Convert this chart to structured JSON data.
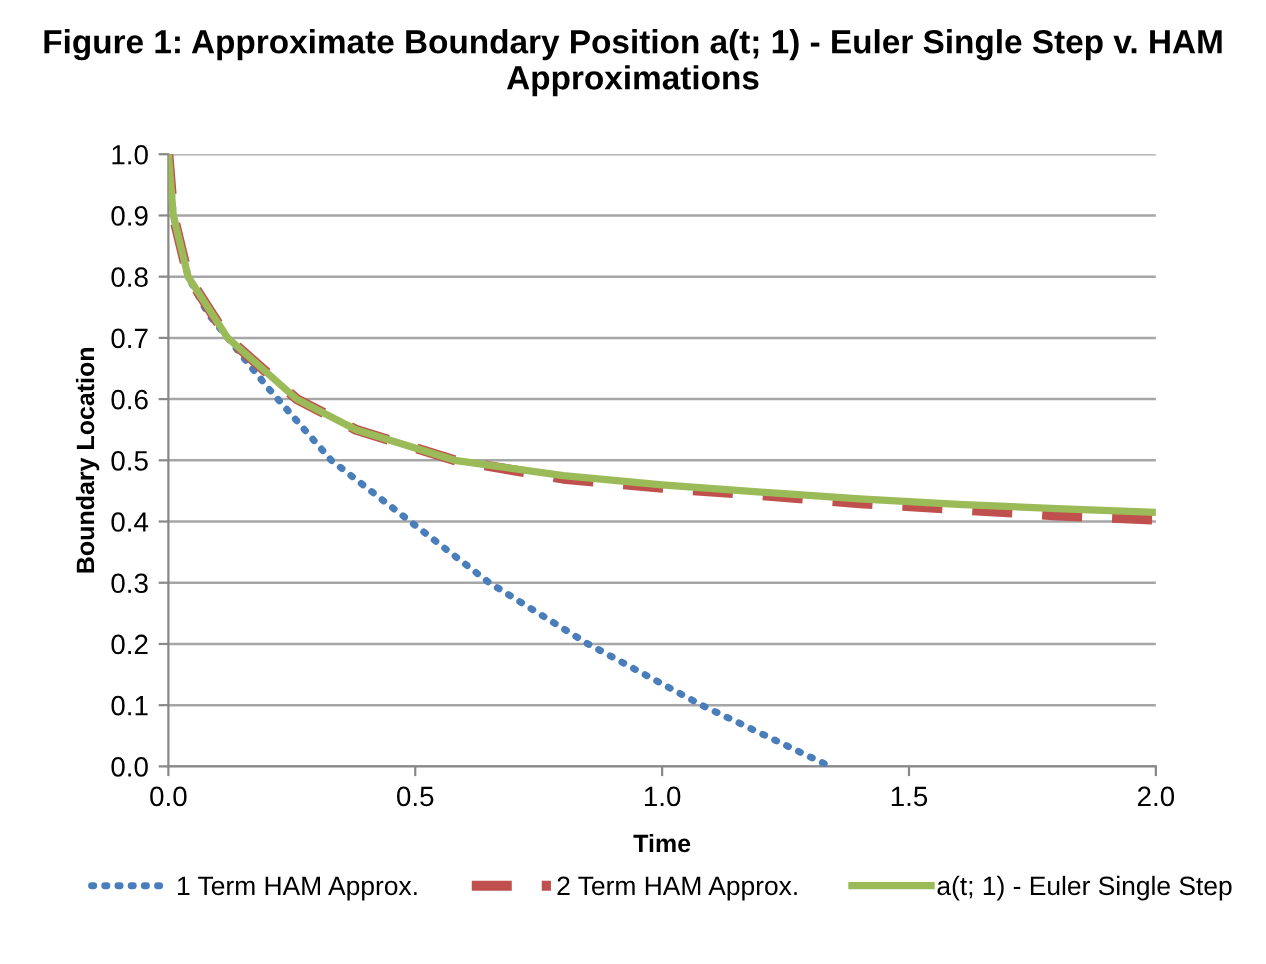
{
  "chart_data": {
    "type": "line",
    "title": "Figure 1: Approximate Boundary Position a(t; 1) - Euler Single Step v. HAM Approximations",
    "xlabel": "Time",
    "ylabel": "Boundary Location",
    "xlim": [
      0,
      2
    ],
    "ylim": [
      0,
      1
    ],
    "xticks": [
      {
        "value": 0,
        "label": "0.0"
      },
      {
        "value": 0.5,
        "label": "0.5"
      },
      {
        "value": 1,
        "label": "1.0"
      },
      {
        "value": 1.5,
        "label": "1.5"
      },
      {
        "value": 2,
        "label": "2.0"
      }
    ],
    "yticks": [
      {
        "value": 0,
        "label": "0.0"
      },
      {
        "value": 0.1,
        "label": "0.1"
      },
      {
        "value": 0.2,
        "label": "0.2"
      },
      {
        "value": 0.3,
        "label": "0.3"
      },
      {
        "value": 0.4,
        "label": "0.4"
      },
      {
        "value": 0.5,
        "label": "0.5"
      },
      {
        "value": 0.6,
        "label": "0.6"
      },
      {
        "value": 0.7,
        "label": "0.7"
      },
      {
        "value": 0.8,
        "label": "0.8"
      },
      {
        "value": 0.9,
        "label": "0.9"
      },
      {
        "value": 1,
        "label": "1.0"
      }
    ],
    "grid": "y",
    "legend": "bottom",
    "marker": "none",
    "series": [
      {
        "name": "1 Term HAM Approx.",
        "color": "#4a7ebb",
        "line_style": "dotted",
        "x": [
          0,
          0.01,
          0.04,
          0.08,
          0.12,
          0.2,
          0.33,
          0.49,
          0.65,
          0.85,
          1.08,
          1.34
        ],
        "values": [
          1,
          0.9,
          0.8,
          0.74,
          0.7,
          0.62,
          0.5,
          0.4,
          0.3,
          0.2,
          0.1,
          0
        ]
      },
      {
        "name": "2 Term HAM Approx.",
        "color": "#c0504d",
        "line_style": "dashed",
        "x": [
          0,
          0.01,
          0.04,
          0.12,
          0.26,
          0.38,
          0.58,
          0.8,
          1.0,
          1.2,
          1.4,
          1.6,
          1.8,
          2.0
        ],
        "values": [
          1,
          0.9,
          0.8,
          0.7,
          0.6,
          0.55,
          0.5,
          0.47,
          0.455,
          0.443,
          0.43,
          0.42,
          0.41,
          0.403
        ]
      },
      {
        "name": "a(t; 1) - Euler Single Step",
        "color": "#9bbb59",
        "line_style": "solid",
        "x": [
          0,
          0.01,
          0.04,
          0.12,
          0.26,
          0.38,
          0.58,
          0.8,
          1.0,
          1.2,
          1.4,
          1.6,
          1.8,
          2.0
        ],
        "values": [
          1,
          0.9,
          0.8,
          0.7,
          0.6,
          0.55,
          0.5,
          0.475,
          0.46,
          0.448,
          0.437,
          0.428,
          0.421,
          0.415
        ]
      }
    ]
  }
}
